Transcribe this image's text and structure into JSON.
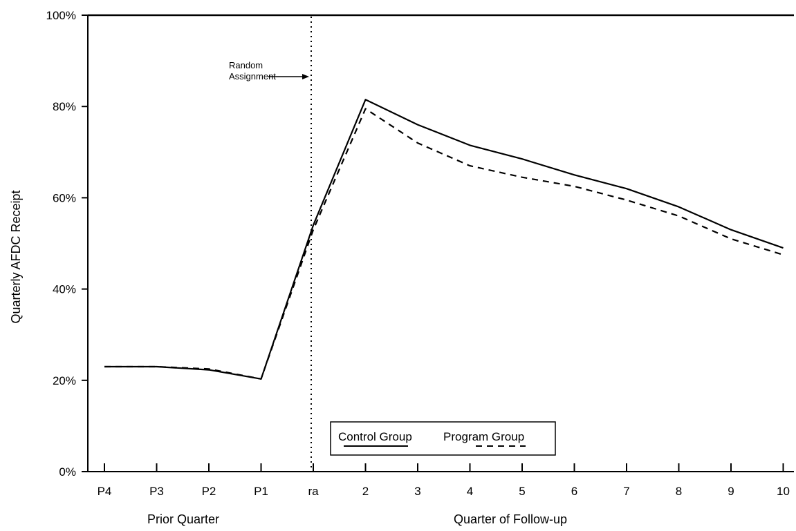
{
  "chart_data": {
    "type": "line",
    "title": "",
    "ylabel": "Quarterly AFDC Receipt",
    "ylim": [
      0,
      100
    ],
    "y_ticks": [
      "0%",
      "20%",
      "40%",
      "60%",
      "80%",
      "100%"
    ],
    "categories": [
      "P4",
      "P3",
      "P2",
      "P1",
      "ra",
      "2",
      "3",
      "4",
      "5",
      "6",
      "7",
      "8",
      "9",
      "10"
    ],
    "x_group_labels": {
      "prior": "Prior Quarter",
      "followup": "Quarter of Follow-up"
    },
    "series": [
      {
        "name": "Control Group",
        "style": "solid",
        "color": "#000000",
        "values": [
          23,
          23,
          22.3,
          20.3,
          54,
          81.5,
          76,
          71.5,
          68.5,
          65,
          62,
          58,
          53,
          49
        ]
      },
      {
        "name": "Program Group",
        "style": "dashed",
        "color": "#000000",
        "values": [
          23,
          23,
          22.5,
          20.3,
          53,
          79.5,
          72,
          67,
          64.5,
          62.5,
          59.5,
          56,
          51,
          47.5
        ]
      }
    ],
    "annotation": {
      "line1": "Random",
      "line2": "Assignment",
      "at_category": "ra"
    },
    "legend": {
      "placement": "bottom-center"
    },
    "grid": false
  }
}
